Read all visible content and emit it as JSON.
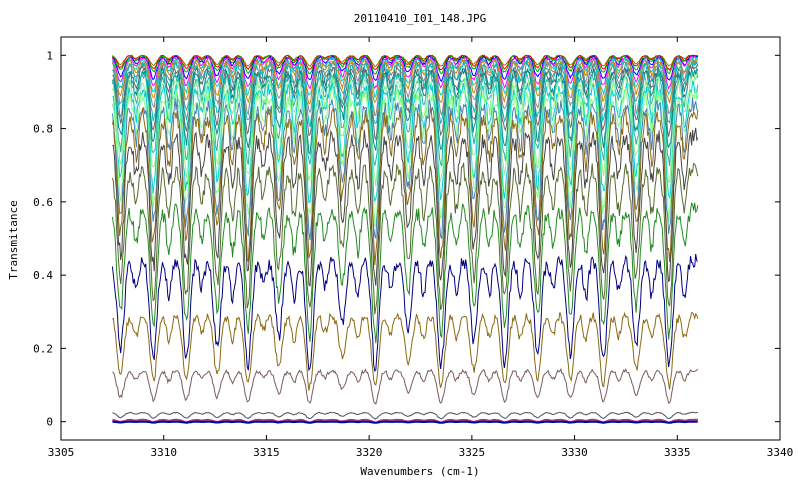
{
  "chart_data": {
    "type": "line",
    "title": "20110410_I01_148.JPG",
    "xlabel": "Wavenumbers (cm-1)",
    "ylabel": "Transmitance",
    "xlim": [
      3305,
      3340
    ],
    "ylim": [
      -0.05,
      1.05
    ],
    "x_ticks": [
      3305,
      3310,
      3315,
      3320,
      3325,
      3330,
      3335,
      3340
    ],
    "y_ticks": [
      0,
      0.2,
      0.4,
      0.6,
      0.8,
      1
    ],
    "x_tick_labels": [
      "3305",
      "3310",
      "3315",
      "3320",
      "3325",
      "3330",
      "3335",
      "3340"
    ],
    "y_tick_labels": [
      "0",
      "0.2",
      "0.4",
      "0.6",
      "0.8",
      "1"
    ],
    "x_data_range": [
      3307.5,
      3336
    ],
    "absorption_lines_cm-1": [
      3307.9,
      3309.5,
      3311.1,
      3312.6,
      3314.1,
      3315.6,
      3317.1,
      3318.7,
      3320.3,
      3321.9,
      3323.5,
      3325.1,
      3326.6,
      3328.2,
      3329.8,
      3331.4,
      3333.0,
      3334.6
    ],
    "grid": false,
    "legend": "none",
    "series": [
      {
        "baseline": 1.0,
        "min": 0.97,
        "color": "#808000"
      },
      {
        "baseline": 1.0,
        "min": 0.96,
        "color": "#ff0000"
      },
      {
        "baseline": 0.998,
        "min": 0.95,
        "color": "#00aa00"
      },
      {
        "baseline": 0.996,
        "min": 0.93,
        "color": "#0000ff"
      },
      {
        "baseline": 0.994,
        "min": 0.91,
        "color": "#ff00ff"
      },
      {
        "baseline": 0.99,
        "min": 0.89,
        "color": "#00cccc"
      },
      {
        "baseline": 0.985,
        "min": 0.87,
        "color": "#cc8800"
      },
      {
        "baseline": 0.98,
        "min": 0.84,
        "color": "#888888"
      },
      {
        "baseline": 0.975,
        "min": 0.81,
        "color": "#00bbbb"
      },
      {
        "baseline": 0.965,
        "min": 0.78,
        "color": "#666666"
      },
      {
        "baseline": 0.955,
        "min": 0.74,
        "color": "#008b8b"
      },
      {
        "baseline": 0.945,
        "min": 0.7,
        "color": "#20b2aa"
      },
      {
        "baseline": 0.93,
        "min": 0.65,
        "color": "#90ee90"
      },
      {
        "baseline": 0.915,
        "min": 0.6,
        "color": "#00ced1"
      },
      {
        "baseline": 0.895,
        "min": 0.55,
        "color": "#7fff7f"
      },
      {
        "baseline": 0.87,
        "min": 0.5,
        "color": "#4682b4"
      },
      {
        "baseline": 0.84,
        "min": 0.44,
        "color": "#8b6914"
      },
      {
        "baseline": 0.78,
        "min": 0.38,
        "color": "#444444"
      },
      {
        "baseline": 0.69,
        "min": 0.3,
        "color": "#556b2f"
      },
      {
        "baseline": 0.58,
        "min": 0.23,
        "color": "#228b22"
      },
      {
        "baseline": 0.44,
        "min": 0.14,
        "color": "#000080"
      },
      {
        "baseline": 0.29,
        "min": 0.09,
        "color": "#8b6914"
      },
      {
        "baseline": 0.14,
        "min": 0.05,
        "color": "#7a5c5c"
      },
      {
        "baseline": 0.025,
        "min": 0.008,
        "color": "#5a4a5a"
      },
      {
        "baseline": 0.005,
        "min": -0.002,
        "color": "#9b3b7b"
      },
      {
        "baseline": 0.0,
        "min": -0.003,
        "color": "#0000aa"
      }
    ]
  }
}
